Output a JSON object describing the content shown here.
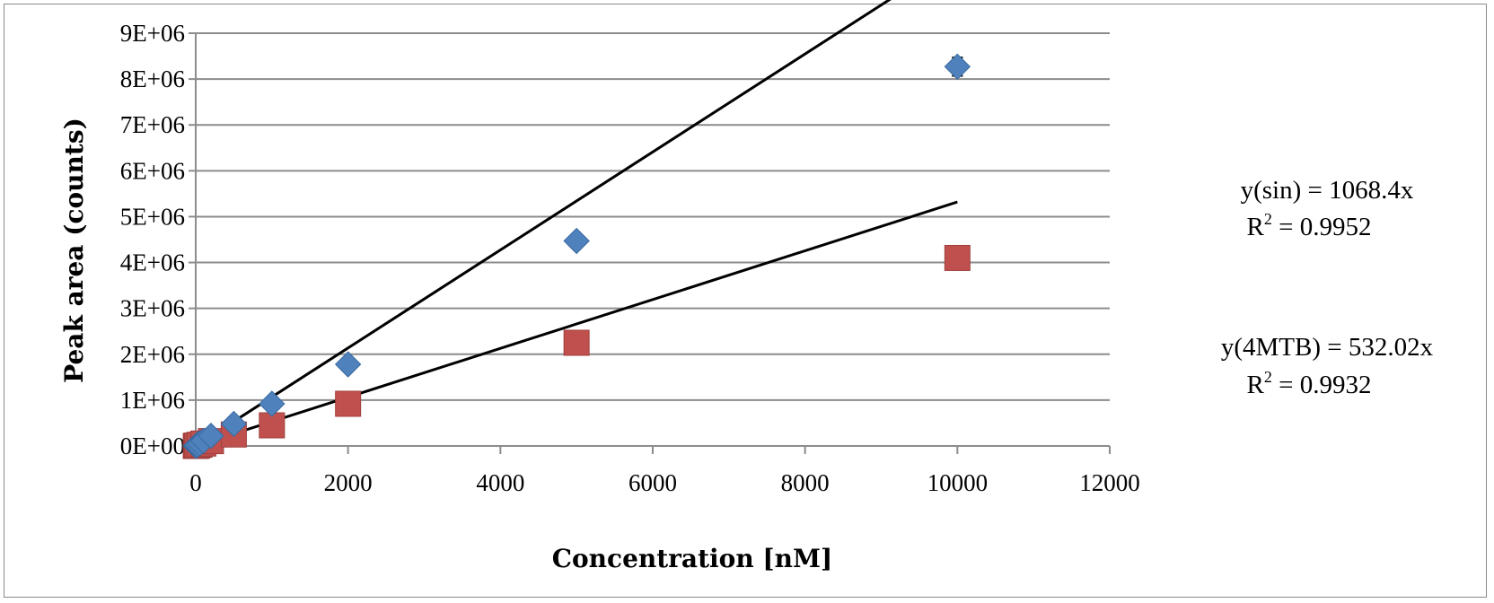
{
  "chart_data": {
    "type": "scatter",
    "xlabel": "Concentration [nM]",
    "ylabel": "Peak area (counts)",
    "xlim": [
      0,
      12000
    ],
    "ylim": [
      0,
      9000000
    ],
    "x_ticks": [
      0,
      2000,
      4000,
      6000,
      8000,
      10000,
      12000
    ],
    "y_ticks": [
      0,
      1000000,
      2000000,
      3000000,
      4000000,
      5000000,
      6000000,
      7000000,
      8000000,
      9000000
    ],
    "x_tick_labels": [
      "0",
      "2000",
      "4000",
      "6000",
      "8000",
      "10000",
      "12000"
    ],
    "y_tick_labels": [
      "0E+00",
      "1E+06",
      "2E+06",
      "3E+06",
      "4E+06",
      "5E+06",
      "6E+06",
      "7E+06",
      "8E+06",
      "9E+06"
    ],
    "grid": "horizontal",
    "series": [
      {
        "marker": "diamond",
        "color": "#4f81bd",
        "x": [
          1,
          10,
          20,
          50,
          100,
          200,
          500,
          1000,
          2000,
          5000,
          10000
        ],
        "y": [
          1100,
          11000,
          22000,
          55000,
          110000,
          220000,
          480000,
          920000,
          1780000,
          4470000,
          8270000
        ],
        "error": [
          0,
          0,
          0,
          0,
          0,
          0,
          0,
          0,
          0,
          0,
          200000
        ],
        "trendline": {
          "slope": 1068.4,
          "intercept": 0,
          "color": "#000000"
        }
      },
      {
        "marker": "square",
        "color": "#c0504d",
        "x": [
          1,
          10,
          20,
          50,
          100,
          200,
          500,
          1000,
          2000,
          5000,
          10000
        ],
        "y": [
          500,
          5000,
          10000,
          27000,
          53000,
          105000,
          250000,
          450000,
          920000,
          2250000,
          4100000
        ],
        "trendline": {
          "slope": 532.02,
          "intercept": 0,
          "color": "#000000"
        }
      }
    ],
    "annotations": [
      {
        "line1": "y(sin) = 1068.4x",
        "r2_label": "R",
        "r2_sup": "2",
        "r2_value": " = 0.9952"
      },
      {
        "line1": "y(4MTB) = 532.02x",
        "r2_label": "R",
        "r2_sup": "2",
        "r2_value": " = 0.9932"
      }
    ]
  }
}
